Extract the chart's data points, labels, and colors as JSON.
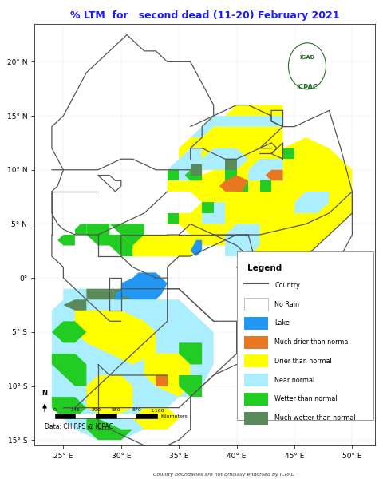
{
  "title": "% LTM  for   second dead (11-20) February 2021",
  "title_fontsize": 9,
  "title_color": "#1a1aff",
  "background_color": "#ffffff",
  "map_background": "#ffffff",
  "xlim": [
    22.5,
    52
  ],
  "ylim": [
    -15.5,
    23.5
  ],
  "xticks": [
    25,
    30,
    35,
    40,
    45,
    50
  ],
  "yticks": [
    -15,
    -10,
    -5,
    0,
    5,
    10,
    15,
    20
  ],
  "legend_title": "Legend",
  "legend_items": [
    {
      "label": "Country",
      "type": "line",
      "color": "#555555"
    },
    {
      "label": "No Rain",
      "type": "patch",
      "color": "#ffffff",
      "edgecolor": "#aaaaaa"
    },
    {
      "label": "Lake",
      "type": "patch",
      "color": "#2196F3"
    },
    {
      "label": "Much drier than normal",
      "type": "patch",
      "color": "#E87722"
    },
    {
      "label": "Drier than normal",
      "type": "patch",
      "color": "#FFFF00"
    },
    {
      "label": "Near normal",
      "type": "patch",
      "color": "#AAEEFF"
    },
    {
      "label": "Wetter than normal",
      "type": "patch",
      "color": "#22CC22"
    },
    {
      "label": "Much wetter than normal",
      "type": "patch",
      "color": "#5A8A5A"
    }
  ],
  "scale_bar_ticks": [
    "0",
    "145",
    "290",
    "580",
    "870",
    "1,160"
  ],
  "scale_bar_label": "Kilometers",
  "footer_text": "Country boundaries are not officially endorsed by ICPAC",
  "data_source": "Data: CHIRPS @ ICPAC"
}
